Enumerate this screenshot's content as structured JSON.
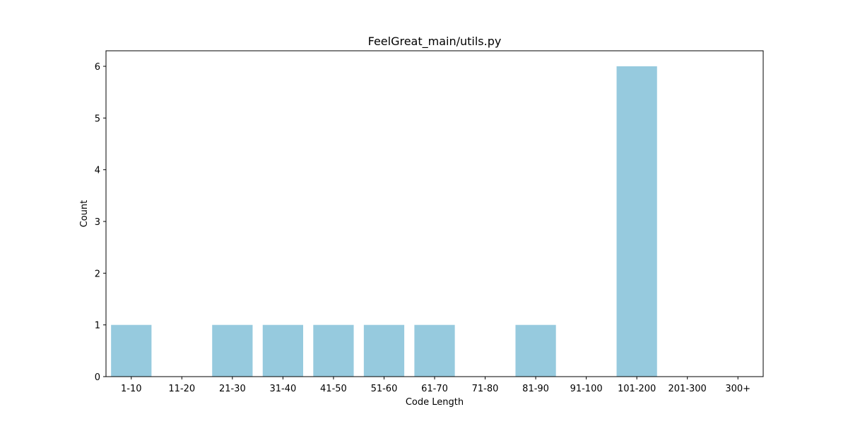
{
  "chart_data": {
    "type": "bar",
    "title": "FeelGreat_main/utils.py",
    "xlabel": "Code Length",
    "ylabel": "Count",
    "categories": [
      "1-10",
      "11-20",
      "21-30",
      "31-40",
      "41-50",
      "51-60",
      "61-70",
      "71-80",
      "81-90",
      "91-100",
      "101-200",
      "201-300",
      "300+"
    ],
    "values": [
      1,
      0,
      1,
      1,
      1,
      1,
      1,
      0,
      1,
      0,
      6,
      0,
      0
    ],
    "ylim": [
      0,
      6.3
    ],
    "yticks": [
      0,
      1,
      2,
      3,
      4,
      5,
      6
    ],
    "bar_color": "#96cade",
    "grid": false,
    "legend": "none"
  }
}
